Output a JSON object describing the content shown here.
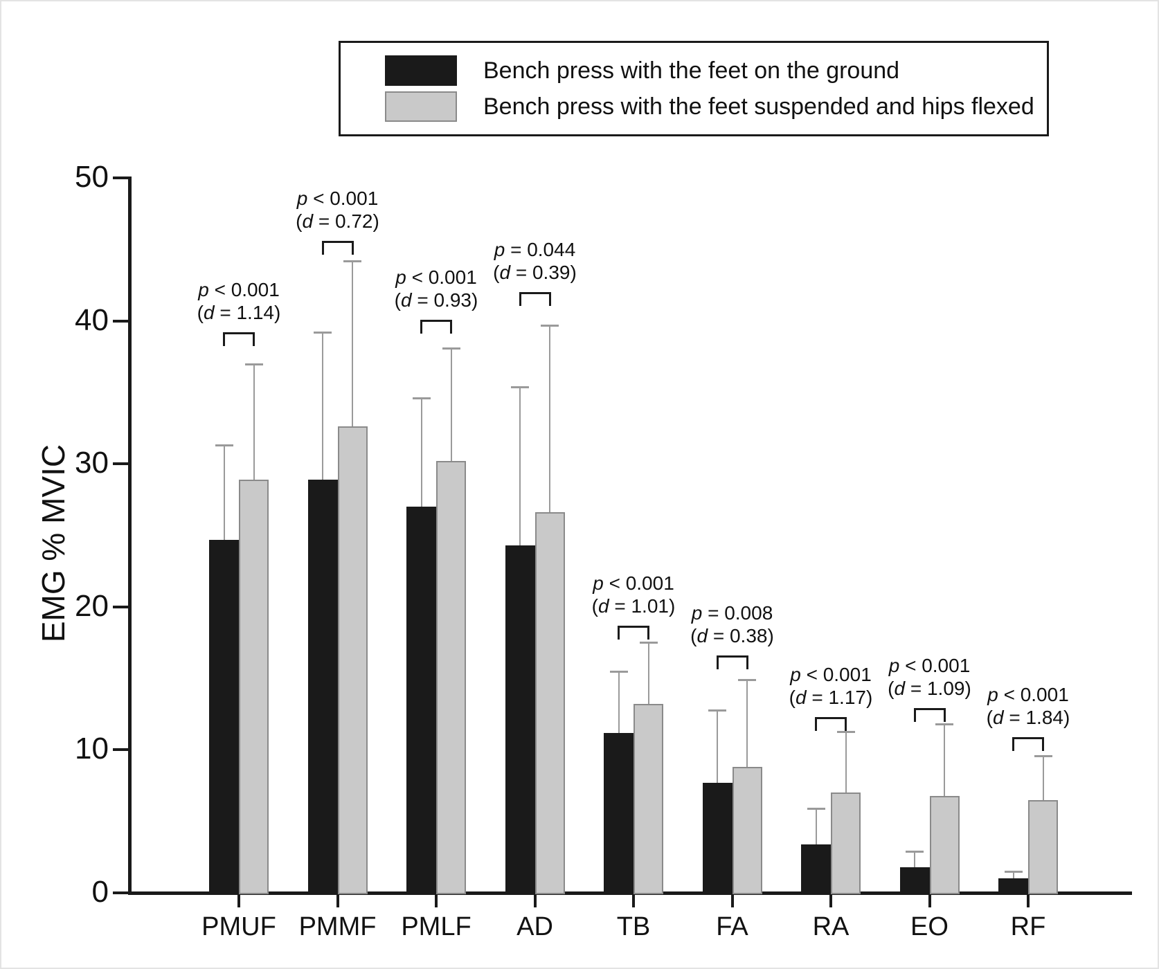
{
  "figure": {
    "background": "#ffffff",
    "border_color": "#e3e3e3",
    "axis_color": "#1a1a1a",
    "error_bar_color": "#9a9a9a"
  },
  "legend": {
    "items": [
      {
        "label": "Bench press with the feet on the ground",
        "color": "#1a1a1a",
        "border": "#1a1a1a"
      },
      {
        "label": "Bench press with the feet suspended and hips flexed",
        "color": "#c9c9c9",
        "border": "#8a8a8a"
      }
    ]
  },
  "chart_data": {
    "type": "bar",
    "title": "",
    "xlabel": "",
    "ylabel": "EMG % MVIC",
    "ylim": [
      0,
      50
    ],
    "y_ticks": [
      0,
      10,
      20,
      30,
      40,
      50
    ],
    "grid": false,
    "legend_position": "top-center",
    "categories": [
      "PMUF",
      "PMMF",
      "PMLF",
      "AD",
      "TB",
      "FA",
      "RA",
      "EO",
      "RF"
    ],
    "series": [
      {
        "name": "Bench press with the feet on the ground",
        "color": "#1a1a1a",
        "border": "#1a1a1a",
        "values": [
          24.7,
          28.9,
          27.0,
          24.3,
          11.2,
          7.7,
          3.4,
          1.8,
          1.0
        ],
        "sd_upper": [
          6.6,
          10.3,
          7.6,
          11.1,
          4.3,
          5.1,
          2.5,
          1.1,
          0.5
        ]
      },
      {
        "name": "Bench press with the feet suspended and hips flexed",
        "color": "#c9c9c9",
        "border": "#8a8a8a",
        "values": [
          28.9,
          32.6,
          30.2,
          26.6,
          13.2,
          8.8,
          7.0,
          6.8,
          6.5
        ],
        "sd_upper": [
          8.1,
          11.6,
          7.9,
          13.1,
          4.3,
          6.1,
          4.3,
          5.0,
          3.1
        ]
      }
    ],
    "annotations": [
      {
        "p_line": "p < 0.001",
        "d_line": "(d = 1.14)",
        "bracket_y": 39.2
      },
      {
        "p_line": "p < 0.001",
        "d_line": "(d = 0.72)",
        "bracket_y": 45.6
      },
      {
        "p_line": "p < 0.001",
        "d_line": "(d = 0.93)",
        "bracket_y": 40.1
      },
      {
        "p_line": "p = 0.044",
        "d_line": "(d = 0.39)",
        "bracket_y": 42.0
      },
      {
        "p_line": "p < 0.001",
        "d_line": "(d = 1.01)",
        "bracket_y": 18.7
      },
      {
        "p_line": "p = 0.008",
        "d_line": "(d = 0.38)",
        "bracket_y": 16.6
      },
      {
        "p_line": "p < 0.001",
        "d_line": "(d = 1.17)",
        "bracket_y": 12.3
      },
      {
        "p_line": "p < 0.001",
        "d_line": "(d = 1.09)",
        "bracket_y": 12.9
      },
      {
        "p_line": "p < 0.001",
        "d_line": "(d = 1.84)",
        "bracket_y": 10.9
      }
    ]
  }
}
